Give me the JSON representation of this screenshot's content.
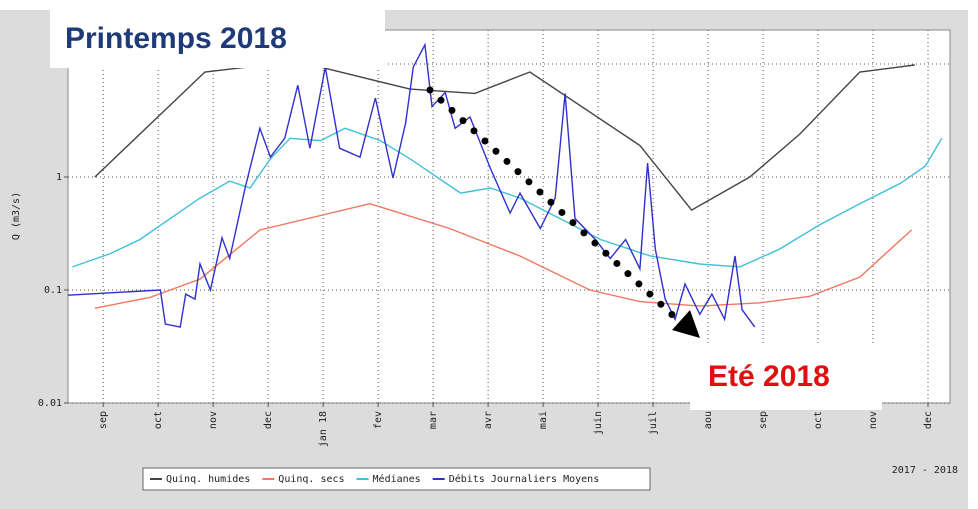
{
  "chart_data": {
    "type": "line",
    "ylabel": "Q (m3/s)",
    "footer": "2017 - 2018",
    "annotations": [
      "Printemps 2018",
      "Eté 2018"
    ],
    "log_y": true,
    "grid": true,
    "xlim": [
      -0.14,
      15.9
    ],
    "ylim": [
      0.01,
      20
    ],
    "yticks": [
      0.01,
      0.1,
      1,
      10
    ],
    "xticks": [
      {
        "value": 0.5,
        "label": "sep"
      },
      {
        "value": 1.5,
        "label": "oct"
      },
      {
        "value": 2.5,
        "label": "nov"
      },
      {
        "value": 3.5,
        "label": "dec"
      },
      {
        "value": 4.5,
        "label": "jan 18"
      },
      {
        "value": 5.5,
        "label": "fev"
      },
      {
        "value": 6.5,
        "label": "mar"
      },
      {
        "value": 7.5,
        "label": "avr"
      },
      {
        "value": 8.5,
        "label": "mai"
      },
      {
        "value": 9.5,
        "label": "juin"
      },
      {
        "value": 10.5,
        "label": "juil"
      },
      {
        "value": 11.5,
        "label": "aou"
      },
      {
        "value": 12.5,
        "label": "sep"
      },
      {
        "value": 13.5,
        "label": "oct"
      },
      {
        "value": 14.5,
        "label": "nov"
      },
      {
        "value": 15.5,
        "label": "dec"
      }
    ],
    "series": [
      {
        "name": "Quinq. humides",
        "color": "#444444",
        "x": [
          0.35,
          2.35,
          3.45,
          4.45,
          6.08,
          7.26,
          8.26,
          10.26,
          11.2,
          12.26,
          13.17,
          14.26,
          15.26
        ],
        "values": [
          1.0,
          8.5,
          9.8,
          9.4,
          6.0,
          5.5,
          8.5,
          1.9,
          0.51,
          1.0,
          2.4,
          8.5,
          9.8
        ]
      },
      {
        "name": "Quinq. secs",
        "color": "#f07860",
        "x": [
          0.35,
          1.35,
          2.26,
          3.35,
          5.35,
          6.8,
          8.08,
          9.35,
          10.26,
          11.35,
          12.45,
          13.35,
          14.26,
          15.2
        ],
        "values": [
          0.069,
          0.086,
          0.125,
          0.34,
          0.58,
          0.35,
          0.2,
          0.1,
          0.079,
          0.072,
          0.077,
          0.088,
          0.13,
          0.34
        ]
      },
      {
        "name": "Médianes",
        "color": "#40c0d8",
        "x": [
          -0.06,
          0.63,
          1.17,
          1.72,
          2.26,
          2.8,
          3.17,
          3.54,
          3.9,
          4.45,
          4.9,
          5.54,
          6.08,
          7.0,
          7.54,
          8.08,
          8.8,
          9.54,
          10.45,
          11.35,
          12.08,
          12.8,
          13.54,
          14.26,
          15.0,
          15.45,
          15.75
        ],
        "values": [
          0.16,
          0.21,
          0.28,
          0.43,
          0.65,
          0.92,
          0.8,
          1.45,
          2.2,
          2.1,
          2.7,
          2.1,
          1.45,
          0.72,
          0.8,
          0.65,
          0.43,
          0.28,
          0.2,
          0.17,
          0.16,
          0.23,
          0.38,
          0.58,
          0.88,
          1.25,
          2.2
        ]
      },
      {
        "name": "Débits Journaliers Moyens",
        "color": "#3030d0",
        "x": [
          -0.14,
          1.54,
          1.63,
          1.9,
          2.0,
          2.17,
          2.26,
          2.45,
          2.66,
          2.8,
          3.08,
          3.35,
          3.54,
          3.8,
          4.04,
          4.26,
          4.54,
          4.8,
          5.17,
          5.45,
          5.77,
          6.0,
          6.14,
          6.35,
          6.48,
          6.72,
          6.9,
          7.17,
          7.54,
          7.9,
          8.08,
          8.45,
          8.72,
          8.9,
          9.08,
          9.45,
          9.72,
          10.0,
          10.26,
          10.4,
          10.54,
          10.72,
          10.9,
          11.08,
          11.35,
          11.57,
          11.8,
          11.99,
          12.12,
          12.35
        ],
        "values": [
          0.09,
          0.1,
          0.05,
          0.047,
          0.092,
          0.083,
          0.17,
          0.1,
          0.29,
          0.19,
          0.8,
          2.7,
          1.5,
          2.2,
          6.5,
          1.8,
          9.4,
          1.8,
          1.5,
          5.0,
          0.98,
          3.0,
          9.4,
          14.8,
          4.2,
          5.6,
          2.7,
          3.4,
          1.2,
          0.48,
          0.72,
          0.35,
          0.65,
          5.5,
          0.43,
          0.28,
          0.19,
          0.28,
          0.154,
          1.33,
          0.23,
          0.083,
          0.055,
          0.113,
          0.061,
          0.092,
          0.055,
          0.2,
          0.067,
          0.047
        ]
      }
    ]
  }
}
